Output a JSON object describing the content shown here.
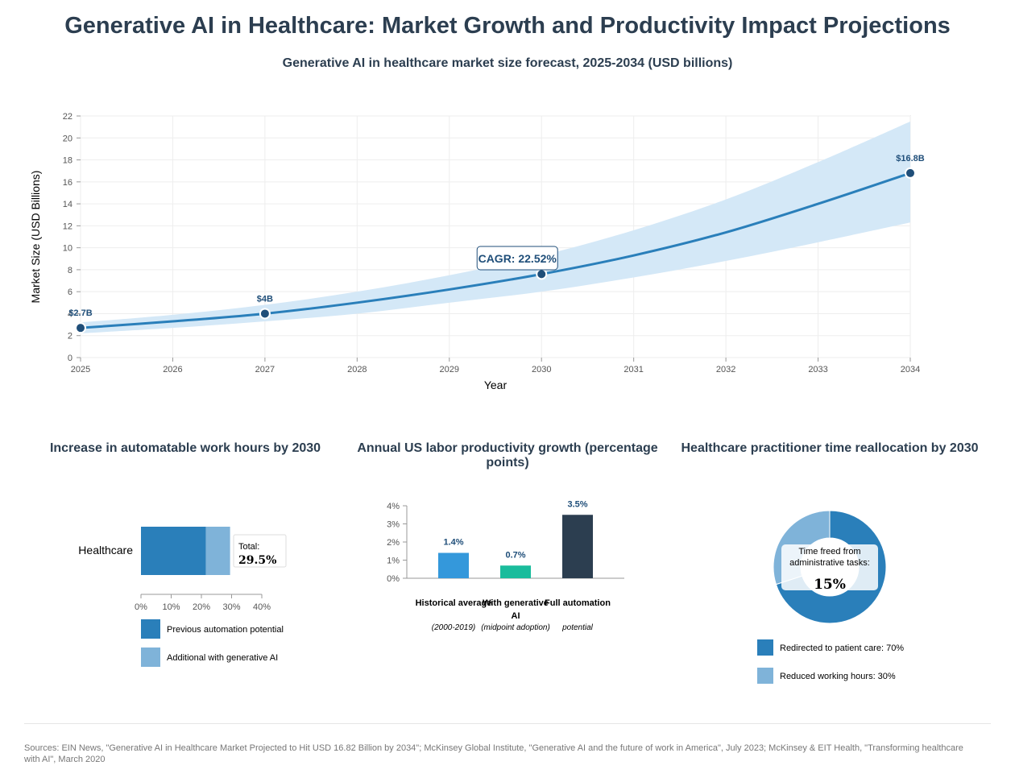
{
  "header": {
    "title": "Generative AI in Healthcare: Market Growth and Productivity Impact Projections",
    "subtitle": "Generative AI in healthcare market size forecast, 2025-2034 (USD billions)"
  },
  "colors": {
    "line": "#2a7fba",
    "band": "#d4e8f7",
    "point": "#1f4e79",
    "text": "#2c3e50",
    "bar_previous": "#2a7fba",
    "bar_additional": "#7fb3d9",
    "bar_historical": "#3498db",
    "bar_genai": "#1abc9c",
    "bar_full": "#2c3e50"
  },
  "chart_data": [
    {
      "type": "line",
      "title": "Generative AI in healthcare market size forecast, 2025-2034 (USD billions)",
      "xlabel": "Year",
      "ylabel": "Market Size (USD Billions)",
      "x": [
        2025,
        2026,
        2027,
        2028,
        2029,
        2030,
        2031,
        2032,
        2033,
        2034
      ],
      "xlim": [
        2025,
        2034
      ],
      "ylim": [
        0,
        22
      ],
      "yticks": [
        0,
        2,
        4,
        6,
        8,
        10,
        12,
        14,
        16,
        18,
        20,
        22
      ],
      "grid": true,
      "series": [
        {
          "values": [
            2.7,
            3.3,
            4.0,
            5.0,
            6.2,
            7.6,
            9.3,
            11.4,
            14.0,
            16.8
          ]
        }
      ],
      "band_upper": [
        3.2,
        3.9,
        4.8,
        6.0,
        7.5,
        9.3,
        11.6,
        14.4,
        17.8,
        21.5
      ],
      "band_lower": [
        2.2,
        2.7,
        3.3,
        4.0,
        5.0,
        6.0,
        7.3,
        8.8,
        10.5,
        12.3
      ],
      "point_labels": [
        {
          "x": 2025,
          "y": 2.7,
          "text": "$2.7B"
        },
        {
          "x": 2027,
          "y": 4.0,
          "text": "$4B"
        },
        {
          "x": 2030,
          "y": 7.6,
          "text": ""
        },
        {
          "x": 2034,
          "y": 16.8,
          "text": "$16.8B"
        }
      ],
      "annotation": "CAGR: 22.52%"
    },
    {
      "type": "bar",
      "orientation": "horizontal",
      "stacked": true,
      "title": "Increase in automatable work hours by 2030",
      "categories": [
        "Healthcare"
      ],
      "series": [
        {
          "name": "Previous automation potential",
          "values": [
            21.5
          ]
        },
        {
          "name": "Additional with generative AI",
          "values": [
            8.0
          ]
        }
      ],
      "xlim": [
        0,
        40
      ],
      "xticks": [
        "0%",
        "10%",
        "20%",
        "30%",
        "40%"
      ],
      "total_label": "Total:",
      "total_value": "29.5%"
    },
    {
      "type": "bar",
      "title": "Annual US labor productivity growth (percentage points)",
      "categories": [
        {
          "line1": "Historical average",
          "line2": "",
          "note": "(2000-2019)"
        },
        {
          "line1": "With generative",
          "line2": "AI",
          "note": "(midpoint adoption)"
        },
        {
          "line1": "Full automation",
          "line2": "",
          "note": "potential"
        }
      ],
      "values": [
        1.4,
        0.7,
        3.5
      ],
      "value_labels": [
        "1.4%",
        "0.7%",
        "3.5%"
      ],
      "ylim": [
        0,
        4
      ],
      "yticks": [
        "0%",
        "1%",
        "2%",
        "3%",
        "4%"
      ]
    },
    {
      "type": "pie",
      "donut": true,
      "title": "Healthcare practitioner time reallocation by 2030",
      "slices": [
        {
          "label": "Redirected to patient care: 70%",
          "value": 70
        },
        {
          "label": "Reduced working hours: 30%",
          "value": 30
        }
      ],
      "center_label": "Time freed from administrative tasks:",
      "center_value": "15%"
    }
  ],
  "sources": "Sources: EIN News, \"Generative AI in Healthcare Market Projected to Hit USD 16.82 Billion by 2034\"; McKinsey Global Institute, \"Generative AI and the future of work in America\", July 2023; McKinsey & EIT Health, \"Transforming healthcare with AI\", March 2020"
}
